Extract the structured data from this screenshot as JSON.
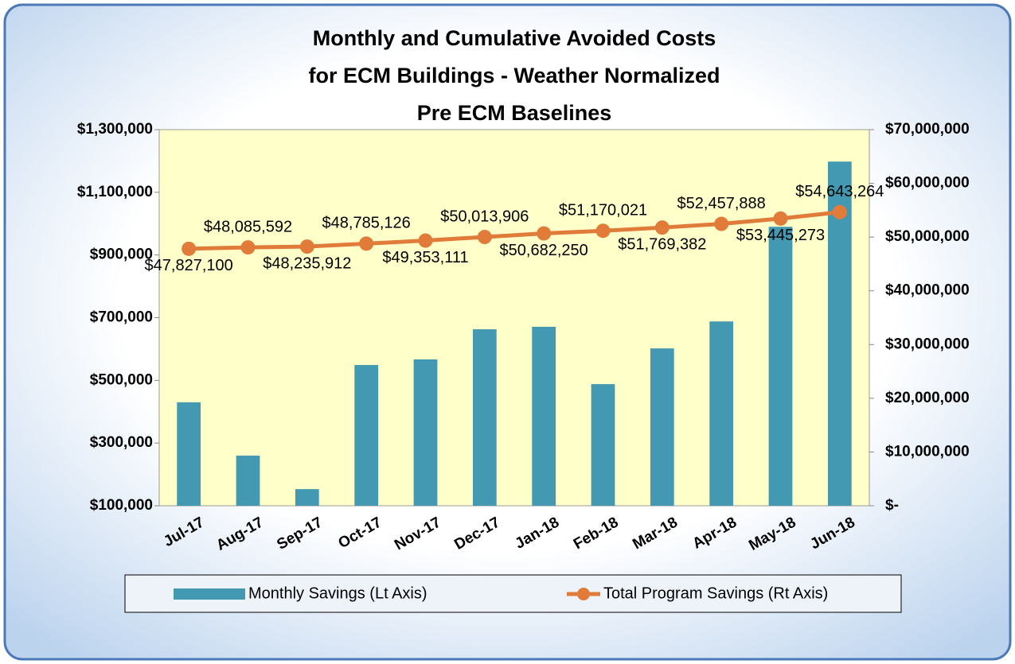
{
  "chart_data": {
    "type": "bar+line",
    "title": [
      "Monthly and Cumulative Avoided Costs",
      "for ECM Buildings - Weather Normalized",
      "Pre ECM Baselines"
    ],
    "categories": [
      "Jul-17",
      "Aug-17",
      "Sep-17",
      "Oct-17",
      "Nov-17",
      "Dec-17",
      "Jan-18",
      "Feb-18",
      "Mar-18",
      "Apr-18",
      "May-18",
      "Jun-18"
    ],
    "series": [
      {
        "name": "Monthly Savings (Lt Axis)",
        "type": "bar",
        "color": "#4299b1",
        "axis": "y",
        "values": [
          430000,
          260000,
          153000,
          549000,
          567000,
          663000,
          671000,
          488000,
          602000,
          688000,
          990000,
          1198000
        ]
      },
      {
        "name": "Total Program Savings (Rt Axis)",
        "type": "line",
        "color": "#e07b39",
        "axis": "y2",
        "values": [
          47827100,
          48085592,
          48235912,
          48785126,
          49353111,
          50013906,
          50682250,
          51170021,
          51769382,
          52457888,
          53445273,
          54643264
        ],
        "value_labels": [
          "$47,827,100",
          "$48,085,592",
          "$48,235,912",
          "$48,785,126",
          "$49,353,111",
          "$50,013,906",
          "$50,682,250",
          "$51,170,021",
          "$51,769,382",
          "$52,457,888",
          "$53,445,273",
          "$54,643,264"
        ]
      }
    ],
    "ylim": [
      100000,
      1300000
    ],
    "yticks": [
      {
        "value": 100000,
        "label": "$100,000"
      },
      {
        "value": 300000,
        "label": "$300,000"
      },
      {
        "value": 500000,
        "label": "$500,000"
      },
      {
        "value": 700000,
        "label": "$700,000"
      },
      {
        "value": 900000,
        "label": "$900,000"
      },
      {
        "value": 1100000,
        "label": "$1,100,000"
      },
      {
        "value": 1300000,
        "label": "$1,300,000"
      }
    ],
    "y2lim": [
      0,
      70000000
    ],
    "y2ticks": [
      {
        "value": 0,
        "label": "$-"
      },
      {
        "value": 10000000,
        "label": "$10,000,000"
      },
      {
        "value": 20000000,
        "label": "$20,000,000"
      },
      {
        "value": 30000000,
        "label": "$30,000,000"
      },
      {
        "value": 40000000,
        "label": "$40,000,000"
      },
      {
        "value": 50000000,
        "label": "$50,000,000"
      },
      {
        "value": 60000000,
        "label": "$60,000,000"
      },
      {
        "value": 70000000,
        "label": "$70,000,000"
      }
    ],
    "legend": "bottom"
  }
}
